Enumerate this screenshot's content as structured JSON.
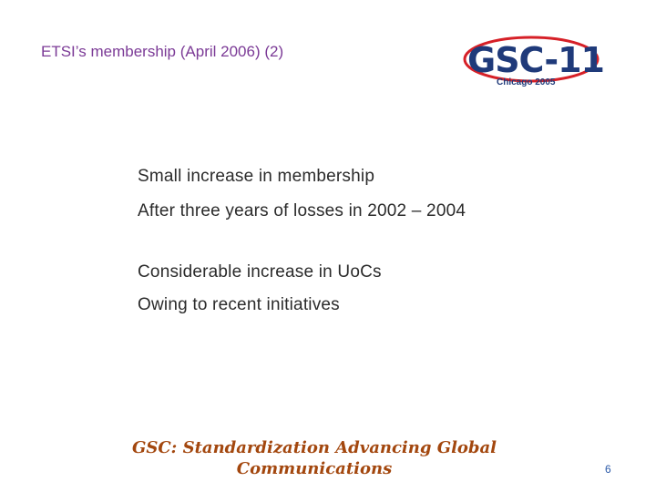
{
  "header": {
    "title": "ETSI’s membership (April 2006) (2)",
    "logo": {
      "name": "GSC-11",
      "subtitle": "Chicago 2005"
    }
  },
  "body": [
    "Small increase in membership",
    "After three years of losses in 2002 – 2004",
    "Considerable increase in UoCs",
    "Owing to recent initiatives"
  ],
  "footer": {
    "lines": [
      "GSC: Standardization Advancing Global",
      "Communications"
    ],
    "page": "6"
  }
}
